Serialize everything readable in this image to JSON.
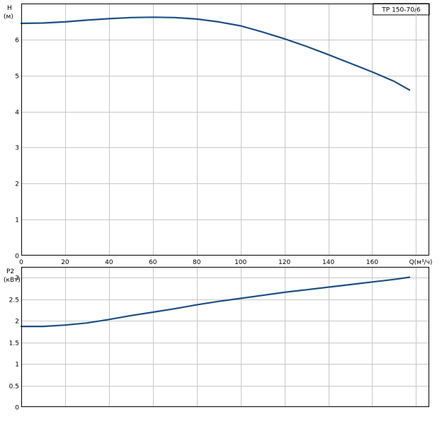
{
  "model_label": "TP 150-70/6",
  "chart_data": [
    {
      "type": "line",
      "title": "",
      "ylabel": "H",
      "yunit": "(м)",
      "xlabel": "Q(м³/ч)",
      "xlim": [
        0,
        186
      ],
      "ylim": [
        0,
        7
      ],
      "xticks": [
        0,
        20,
        40,
        60,
        80,
        100,
        120,
        140,
        160
      ],
      "yticks": [
        0,
        1,
        2,
        3,
        4,
        5,
        6
      ],
      "grid": true,
      "series": [
        {
          "x": [
            0,
            10,
            20,
            30,
            40,
            50,
            60,
            70,
            80,
            90,
            100,
            110,
            120,
            130,
            140,
            150,
            160,
            170,
            177
          ],
          "y": [
            6.45,
            6.46,
            6.49,
            6.54,
            6.58,
            6.61,
            6.62,
            6.61,
            6.57,
            6.49,
            6.38,
            6.21,
            6.02,
            5.81,
            5.58,
            5.34,
            5.1,
            4.84,
            4.6
          ]
        }
      ]
    },
    {
      "type": "line",
      "title": "",
      "ylabel": "P2",
      "yunit": "(кВт)",
      "xlabel": "",
      "xlim": [
        0,
        186
      ],
      "ylim": [
        0,
        3.25
      ],
      "yticks": [
        "0",
        "0.5",
        "1",
        "1.5",
        "2",
        "2.5",
        "3"
      ],
      "grid": true,
      "series": [
        {
          "x": [
            0,
            10,
            20,
            30,
            40,
            50,
            60,
            70,
            80,
            90,
            100,
            110,
            120,
            130,
            140,
            150,
            160,
            170,
            177
          ],
          "y": [
            1.87,
            1.87,
            1.9,
            1.95,
            2.03,
            2.12,
            2.2,
            2.28,
            2.37,
            2.45,
            2.52,
            2.59,
            2.66,
            2.72,
            2.78,
            2.84,
            2.9,
            2.96,
            3.01
          ]
        }
      ]
    }
  ],
  "colors": {
    "curve": "#1d4f86",
    "grid": "#c8c8c8"
  }
}
